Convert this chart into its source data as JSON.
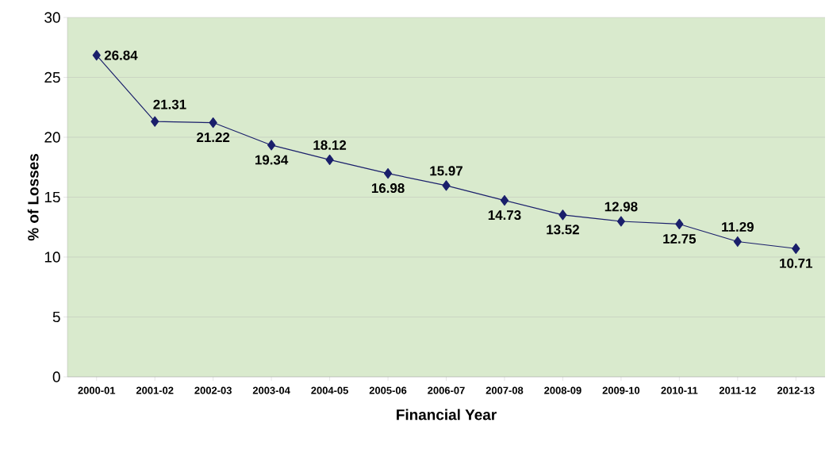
{
  "chart_data": {
    "type": "line",
    "xlabel": "Financial Year",
    "ylabel": "% of Losses",
    "categories": [
      "2000-01",
      "2001-02",
      "2002-03",
      "2003-04",
      "2004-05",
      "2005-06",
      "2006-07",
      "2007-08",
      "2008-09",
      "2009-10",
      "2010-11",
      "2011-12",
      "2012-13"
    ],
    "values": [
      26.84,
      21.31,
      21.22,
      19.34,
      18.12,
      16.98,
      15.97,
      14.73,
      13.52,
      12.98,
      12.75,
      11.29,
      10.71
    ],
    "color": "#1a1f6b",
    "marker": "diamond",
    "line_style": "solid",
    "data_labels": true,
    "grid": "y",
    "ylim": [
      0,
      30
    ],
    "yticks": [
      0,
      5,
      10,
      15,
      20,
      25,
      30
    ]
  }
}
